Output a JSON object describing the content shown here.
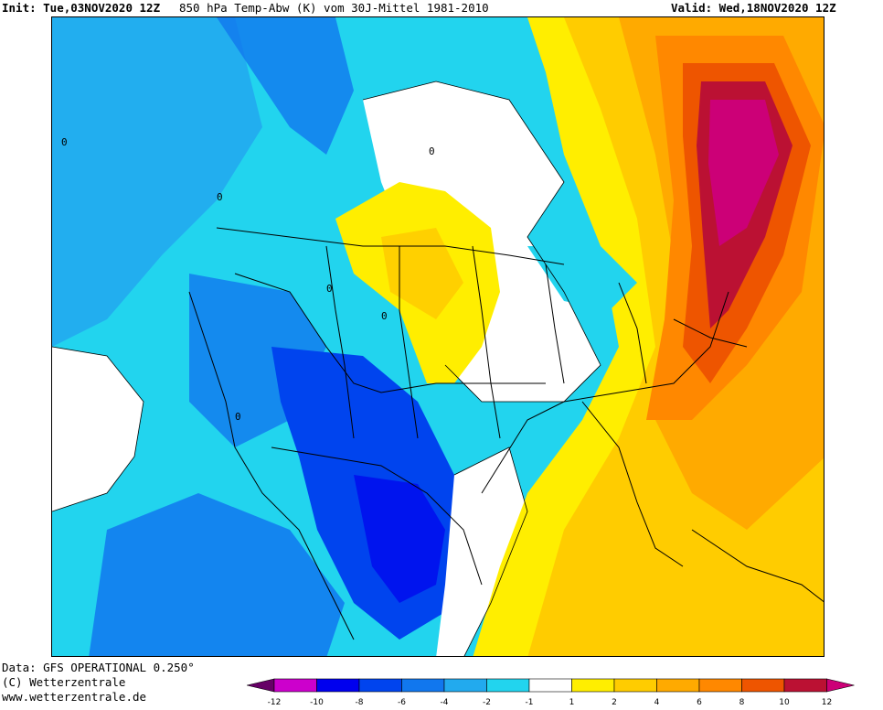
{
  "header": {
    "init": "Init: Tue,03NOV2020 12Z",
    "title": "850 hPa Temp-Abw (K) vom 30J-Mittel 1981-2010",
    "valid": "Valid: Wed,18NOV2020 12Z"
  },
  "footer": {
    "data_source": "Data: GFS OPERATIONAL 0.250°",
    "copyright": "(C) Wetterzentrale",
    "website": "www.wetterzentrale.de"
  },
  "legend": {
    "ticks": [
      "-12",
      "-10",
      "-8",
      "-6",
      "-4",
      "-2",
      "-1",
      "1",
      "2",
      "4",
      "6",
      "8",
      "10",
      "12"
    ],
    "colors": [
      "#cc00cc",
      "#0000ee",
      "#0044ee",
      "#1177ee",
      "#22aaee",
      "#22d4ee",
      "#ffffff",
      "#ffee00",
      "#ffcc00",
      "#ffaa00",
      "#ff8800",
      "#ee5500",
      "#bb1133"
    ],
    "low_end_color": "#660066",
    "high_end_color": "#cc0077"
  },
  "map": {
    "contour_label": "0"
  }
}
